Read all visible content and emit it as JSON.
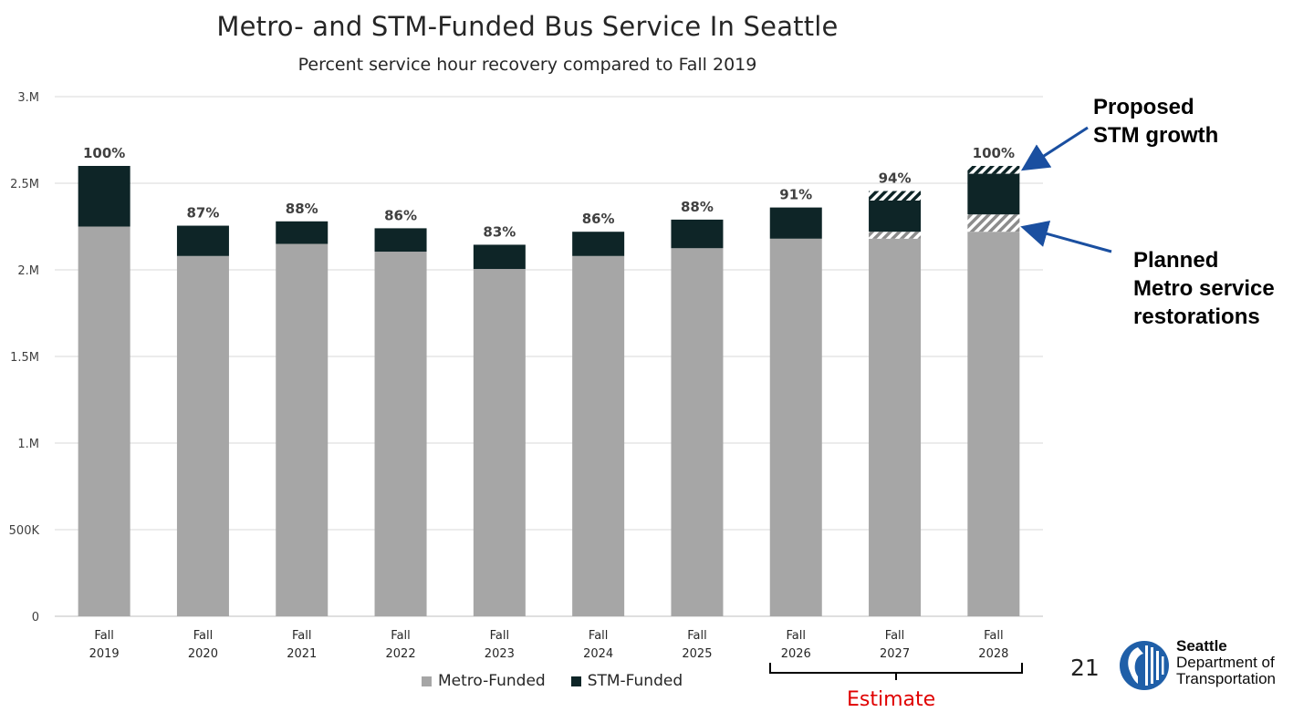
{
  "title": "Metro- and STM-Funded Bus Service In Seattle",
  "subtitle": "Percent service hour recovery compared to Fall 2019",
  "chart_data": {
    "type": "bar",
    "stacked": true,
    "categories": [
      [
        "Fall",
        "2019"
      ],
      [
        "Fall",
        "2020"
      ],
      [
        "Fall",
        "2021"
      ],
      [
        "Fall",
        "2022"
      ],
      [
        "Fall",
        "2023"
      ],
      [
        "Fall",
        "2024"
      ],
      [
        "Fall",
        "2025"
      ],
      [
        "Fall",
        "2026"
      ],
      [
        "Fall",
        "2027"
      ],
      [
        "Fall",
        "2028"
      ]
    ],
    "ylim": [
      0,
      3000000
    ],
    "yticks": [
      0,
      500000,
      1000000,
      1500000,
      2000000,
      2500000,
      3000000
    ],
    "ytick_labels": [
      "0",
      "500K",
      "1.M",
      "1.5M",
      "2.M",
      "2.5M",
      "3.M"
    ],
    "grid": true,
    "series": [
      {
        "name": "Metro-Funded",
        "color": "#a6a6a6",
        "values": [
          2250000,
          2080000,
          2150000,
          2105000,
          2005000,
          2080000,
          2125000,
          2180000,
          2180000,
          2220000
        ]
      },
      {
        "name": "Planned Metro service restorations",
        "pattern": "hatch-light",
        "values": [
          0,
          0,
          0,
          0,
          0,
          0,
          0,
          0,
          40000,
          100000
        ]
      },
      {
        "name": "STM-Funded",
        "color": "#0e2527",
        "values": [
          350000,
          175000,
          130000,
          135000,
          140000,
          140000,
          165000,
          180000,
          180000,
          235000
        ]
      },
      {
        "name": "Proposed STM growth",
        "pattern": "hatch-dark",
        "values": [
          0,
          0,
          0,
          0,
          0,
          0,
          0,
          0,
          55000,
          45000
        ]
      }
    ],
    "data_labels": [
      "100%",
      "87%",
      "88%",
      "86%",
      "83%",
      "86%",
      "88%",
      "91%",
      "94%",
      "100%"
    ],
    "legend": {
      "position": "bottom",
      "entries": [
        "Metro-Funded",
        "STM-Funded"
      ]
    }
  },
  "callouts": {
    "stm_growth": [
      "Proposed",
      "STM growth"
    ],
    "metro_restorations": [
      "Planned",
      "Metro service",
      "restorations"
    ]
  },
  "legend": {
    "metro": "Metro-Funded",
    "stm": "STM-Funded",
    "metro_color": "#a6a6a6",
    "stm_color": "#0e2527"
  },
  "estimate_label": "Estimate",
  "page_number": "21",
  "logo": {
    "line1": "Seattle",
    "line2": "Department of",
    "line3": "Transportation",
    "color": "#1f5fa8"
  }
}
